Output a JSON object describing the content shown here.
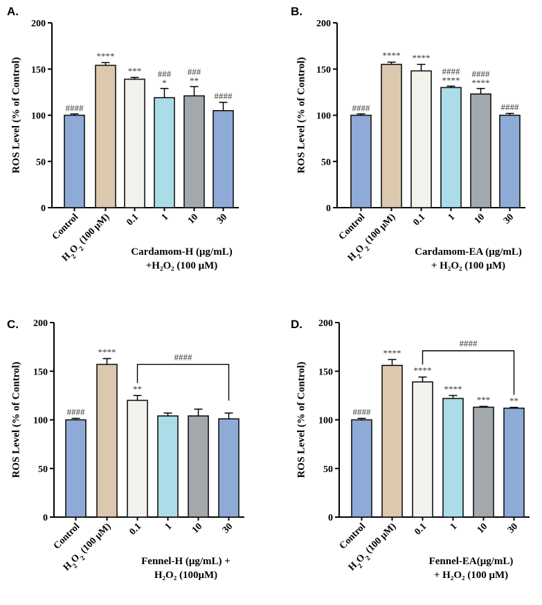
{
  "colors": {
    "control": "#8eaad6",
    "h2o2": "#dcc8ae",
    "c01": "#f3f1eb",
    "c1": "#abdde8",
    "c10": "#a3a8ad",
    "c30": "#8eaad6",
    "edge": "#111111",
    "sig_text": "#333333"
  },
  "chart_data": [
    {
      "panel": "A.",
      "type": "bar",
      "ylabel": "ROS Level (% of Control)",
      "ylim": [
        0,
        200
      ],
      "yticks": [
        "0",
        "50",
        "100",
        "150",
        "200"
      ],
      "categories": [
        "Control",
        "H2O2 (100 μM)",
        "0.1",
        "1",
        "10",
        "30"
      ],
      "values": [
        100,
        154,
        139,
        119,
        121,
        105
      ],
      "errors": [
        1.5,
        3,
        2,
        10,
        10,
        9
      ],
      "sig_top": [
        "",
        "****",
        "***",
        "###",
        "###",
        "####"
      ],
      "sig_bottom": [
        "####",
        "",
        "",
        "*",
        "**",
        ""
      ],
      "xtitle_line1": "Cardamom-H (μg/mL)",
      "xtitle_line2": "+H₂O₂ (100 μM)",
      "bracket": null
    },
    {
      "panel": "B.",
      "type": "bar",
      "ylabel": "ROS Level (% of Control)",
      "ylim": [
        0,
        200
      ],
      "yticks": [
        "0",
        "50",
        "100",
        "150",
        "200"
      ],
      "categories": [
        "Control",
        "H2O2 (100 μM)",
        "0.1",
        "1",
        "10",
        "30"
      ],
      "values": [
        100,
        155,
        148,
        130,
        123,
        100
      ],
      "errors": [
        1.5,
        2.5,
        7,
        1.5,
        6,
        2
      ],
      "sig_top": [
        "",
        "****",
        "****",
        "####",
        "####",
        "####"
      ],
      "sig_bottom": [
        "####",
        "",
        "",
        "****",
        "****",
        ""
      ],
      "xtitle_line1": "Cardamom-EA (μg/mL)",
      "xtitle_line2": "+ H₂O₂ (100 μM)",
      "bracket": null
    },
    {
      "panel": "C.",
      "type": "bar",
      "ylabel": "ROS Level (% of Control)",
      "ylim": [
        0,
        200
      ],
      "yticks": [
        "0",
        "50",
        "100",
        "150",
        "200"
      ],
      "categories": [
        "Control",
        "H2O2 (100 μM)",
        "0.1",
        "1",
        "10",
        "30"
      ],
      "values": [
        100,
        157,
        120,
        104,
        104,
        101
      ],
      "errors": [
        1.5,
        6,
        5,
        3,
        7,
        6
      ],
      "sig_top": [
        "####",
        "****",
        "**",
        "",
        "",
        ""
      ],
      "sig_bottom": [
        "",
        "",
        "",
        "",
        "",
        ""
      ],
      "xtitle_line1": "Fennel-H (μg/mL) +",
      "xtitle_line2": "H₂O₂ (100μM)",
      "bracket": {
        "from": 2,
        "to": 5,
        "y": 157,
        "label": "####"
      }
    },
    {
      "panel": "D.",
      "type": "bar",
      "ylabel": "ROS Level (% of Control)",
      "ylim": [
        0,
        200
      ],
      "yticks": [
        "0",
        "50",
        "100",
        "150",
        "200"
      ],
      "categories": [
        "Control",
        "H2O2 (100 μM)",
        "0.1",
        "1",
        "10",
        "30"
      ],
      "values": [
        100,
        156,
        139,
        122,
        113,
        112
      ],
      "errors": [
        1.5,
        6,
        5,
        3,
        0.8,
        0.8
      ],
      "sig_top": [
        "####",
        "****",
        "****",
        "****",
        "***",
        "**"
      ],
      "sig_bottom": [
        "",
        "",
        "",
        "",
        "",
        ""
      ],
      "xtitle_line1": "Fennel-EA(μg/mL)",
      "xtitle_line2": "+ H₂O₂ (100 μM)",
      "bracket": {
        "from": 2,
        "to": 5,
        "y": 171,
        "label": "####"
      }
    }
  ]
}
